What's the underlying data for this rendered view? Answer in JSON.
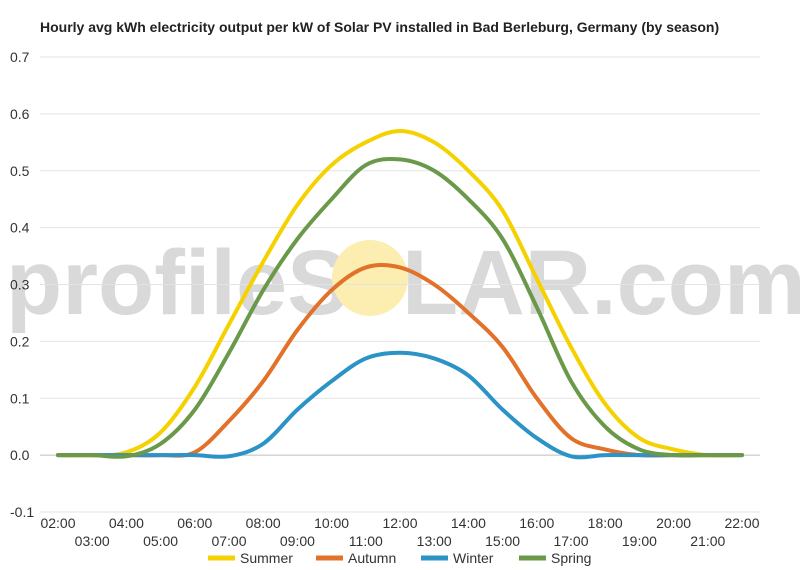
{
  "chart_data": {
    "type": "line",
    "title": "Hourly avg kWh electricity output per kW of Solar PV installed in Bad Berleburg, Germany (by season)",
    "xlabel": "",
    "ylabel": "",
    "ylim": [
      -0.1,
      0.7
    ],
    "yticks": [
      "0.7",
      "0.6",
      "0.5",
      "0.4",
      "0.3",
      "0.2",
      "0.1",
      "0.0",
      "-0.1"
    ],
    "ytick_values": [
      0.7,
      0.6,
      0.5,
      0.4,
      0.3,
      0.2,
      0.1,
      0.0,
      -0.1
    ],
    "x": [
      "02:00",
      "03:00",
      "04:00",
      "05:00",
      "06:00",
      "07:00",
      "08:00",
      "09:00",
      "10:00",
      "11:00",
      "12:00",
      "13:00",
      "14:00",
      "15:00",
      "16:00",
      "17:00",
      "18:00",
      "19:00",
      "20:00",
      "21:00",
      "22:00"
    ],
    "grid": true,
    "legend_position": "bottom",
    "series": [
      {
        "name": "Summer",
        "color": "#f5d100",
        "values": [
          0.0,
          0.0,
          0.005,
          0.04,
          0.12,
          0.23,
          0.34,
          0.44,
          0.51,
          0.55,
          0.57,
          0.55,
          0.5,
          0.43,
          0.31,
          0.19,
          0.09,
          0.03,
          0.01,
          0.0,
          0.0
        ]
      },
      {
        "name": "Autumn",
        "color": "#e2712a",
        "values": [
          0.0,
          0.0,
          0.0,
          0.0,
          0.005,
          0.06,
          0.13,
          0.22,
          0.29,
          0.33,
          0.33,
          0.3,
          0.25,
          0.19,
          0.1,
          0.03,
          0.01,
          0.0,
          0.0,
          0.0,
          0.0
        ]
      },
      {
        "name": "Winter",
        "color": "#2b93c6",
        "values": [
          0.0,
          0.0,
          0.0,
          0.0,
          0.0,
          -0.002,
          0.02,
          0.08,
          0.13,
          0.17,
          0.18,
          0.17,
          0.14,
          0.08,
          0.03,
          -0.002,
          0.0,
          0.0,
          0.0,
          0.0,
          0.0
        ]
      },
      {
        "name": "Spring",
        "color": "#6a994a",
        "values": [
          0.0,
          0.0,
          -0.002,
          0.02,
          0.08,
          0.18,
          0.29,
          0.38,
          0.45,
          0.51,
          0.52,
          0.5,
          0.45,
          0.38,
          0.26,
          0.13,
          0.05,
          0.01,
          0.0,
          0.0,
          0.0
        ]
      }
    ]
  },
  "watermark": {
    "left": "profileS",
    "right": "LAR.com",
    "sun_color": "#fbeeb0"
  }
}
